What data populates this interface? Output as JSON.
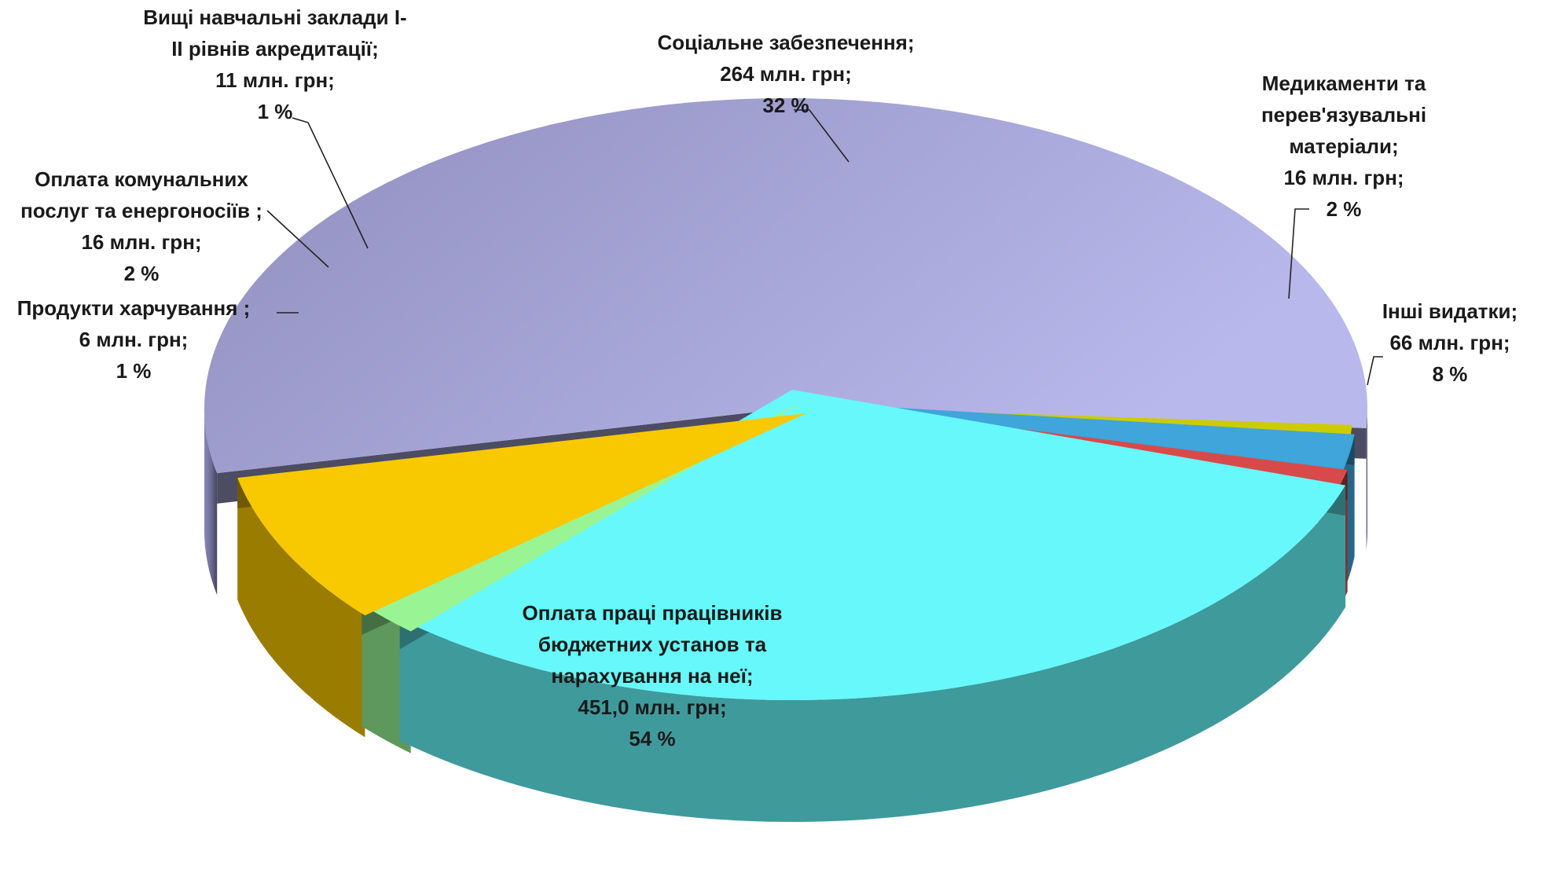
{
  "chart_data": {
    "type": "pie",
    "style": "3d-exploded",
    "title": "",
    "unit": "млн. грн",
    "series": [
      {
        "name": "",
        "slices": [
          {
            "key": "payroll",
            "value": 451.0,
            "percent": 54,
            "color": "#a9a8db",
            "label_lines": [
              "Оплата праці працівників",
              "бюджетних установ та",
              "нарахування на неї;",
              "451,0 млн. грн;",
              "54 %"
            ]
          },
          {
            "key": "food",
            "value": 6,
            "percent": 1,
            "color": "#cccc00",
            "label_lines": [
              "Продукти харчування ;",
              "6 млн. грн;",
              "1 %"
            ]
          },
          {
            "key": "utilities",
            "value": 16,
            "percent": 2,
            "color": "#3fa5db",
            "label_lines": [
              "Оплата комунальних",
              "послуг та енергоносіїв ;",
              "16 млн. грн;",
              "2 %"
            ]
          },
          {
            "key": "higher_edu",
            "value": 11,
            "percent": 1,
            "color": "#d84a4a",
            "label_lines": [
              "Вищі навчальні заклади І-",
              "ІІ рівнів акредитації;",
              "11 млн. грн;",
              "1 %"
            ]
          },
          {
            "key": "social",
            "value": 264,
            "percent": 32,
            "color": "#66f8fb",
            "label_lines": [
              "Соціальне забезпечення;",
              "264 млн. грн;",
              "32 %"
            ]
          },
          {
            "key": "medicine",
            "value": 16,
            "percent": 2,
            "color": "#99f594",
            "label_lines": [
              "Медикаменти та",
              "перев'язувальні",
              "матеріали;",
              "16 млн. грн;",
              "2 %"
            ]
          },
          {
            "key": "other",
            "value": 66,
            "percent": 8,
            "color": "#f8c800",
            "label_lines": [
              "Інші видатки;",
              "66 млн. грн;",
              "8 %"
            ]
          }
        ]
      }
    ]
  }
}
